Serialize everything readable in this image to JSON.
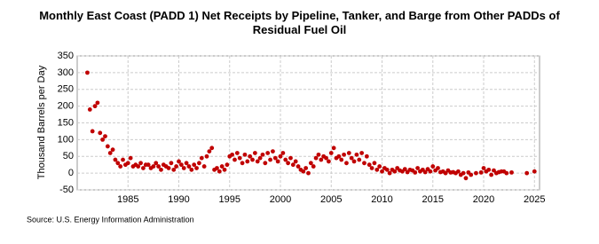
{
  "chart_data": {
    "type": "scatter",
    "title": "Monthly East Coast (PADD 1) Net Receipts by Pipeline, Tanker, and Barge from Other PADDs of Residual Fuel Oil",
    "y_label": "Thousand Barrels per Day",
    "source": "Source: U.S. Energy Information Administration",
    "color": "#c00000",
    "grid": true,
    "xlim": [
      1980,
      2025.5
    ],
    "xticks": [
      1985,
      1990,
      1995,
      2000,
      2005,
      2010,
      2015,
      2020,
      2025
    ],
    "ylim": [
      -50,
      350
    ],
    "yticks": [
      -50,
      0,
      50,
      100,
      150,
      200,
      250,
      300,
      350
    ],
    "x": [
      1981,
      1981.25,
      1981.5,
      1981.75,
      1982,
      1982.25,
      1982.5,
      1982.75,
      1983,
      1983.25,
      1983.5,
      1983.75,
      1984,
      1984.25,
      1984.5,
      1984.75,
      1985,
      1985.25,
      1985.5,
      1985.75,
      1986,
      1986.25,
      1986.5,
      1986.75,
      1987,
      1987.25,
      1987.5,
      1987.75,
      1988,
      1988.25,
      1988.5,
      1988.75,
      1989,
      1989.25,
      1989.5,
      1989.75,
      1990,
      1990.25,
      1990.5,
      1990.75,
      1991,
      1991.25,
      1991.5,
      1991.75,
      1992,
      1992.25,
      1992.5,
      1992.75,
      1993,
      1993.25,
      1993.5,
      1993.75,
      1994,
      1994.25,
      1994.5,
      1994.75,
      1995,
      1995.25,
      1995.5,
      1995.75,
      1996,
      1996.25,
      1996.5,
      1996.75,
      1997,
      1997.25,
      1997.5,
      1997.75,
      1998,
      1998.25,
      1998.5,
      1998.75,
      1999,
      1999.25,
      1999.5,
      1999.75,
      2000,
      2000.25,
      2000.5,
      2000.75,
      2001,
      2001.25,
      2001.5,
      2001.75,
      2002,
      2002.25,
      2002.5,
      2002.75,
      2003,
      2003.25,
      2003.5,
      2003.75,
      2004,
      2004.25,
      2004.5,
      2004.75,
      2005,
      2005.25,
      2005.5,
      2005.75,
      2006,
      2006.25,
      2006.5,
      2006.75,
      2007,
      2007.25,
      2007.5,
      2007.75,
      2008,
      2008.25,
      2008.5,
      2008.75,
      2009,
      2009.25,
      2009.5,
      2009.75,
      2010,
      2010.25,
      2010.5,
      2010.75,
      2011,
      2011.25,
      2011.5,
      2011.75,
      2012,
      2012.25,
      2012.5,
      2012.75,
      2013,
      2013.25,
      2013.5,
      2013.75,
      2014,
      2014.25,
      2014.5,
      2014.75,
      2015,
      2015.25,
      2015.5,
      2015.75,
      2016,
      2016.25,
      2016.5,
      2016.75,
      2017,
      2017.25,
      2017.5,
      2017.75,
      2018,
      2018.25,
      2018.5,
      2018.75,
      2019.25,
      2019.75,
      2020,
      2020.25,
      2020.5,
      2020.75,
      2021,
      2021.25,
      2021.5,
      2021.75,
      2022,
      2022.25,
      2022.75,
      2024.25,
      2025
    ],
    "values": [
      300,
      190,
      125,
      200,
      210,
      120,
      100,
      110,
      80,
      60,
      70,
      40,
      30,
      20,
      40,
      25,
      30,
      45,
      20,
      25,
      20,
      30,
      15,
      25,
      25,
      15,
      20,
      30,
      20,
      10,
      25,
      20,
      15,
      30,
      10,
      20,
      35,
      25,
      15,
      30,
      20,
      10,
      25,
      15,
      30,
      45,
      20,
      50,
      65,
      75,
      10,
      15,
      5,
      20,
      10,
      25,
      50,
      55,
      40,
      60,
      45,
      30,
      55,
      35,
      50,
      40,
      60,
      35,
      45,
      55,
      30,
      60,
      40,
      65,
      45,
      35,
      50,
      60,
      40,
      30,
      45,
      25,
      35,
      20,
      10,
      5,
      15,
      0,
      30,
      20,
      45,
      55,
      40,
      50,
      45,
      35,
      60,
      75,
      45,
      50,
      40,
      55,
      30,
      60,
      45,
      35,
      55,
      40,
      60,
      30,
      50,
      25,
      15,
      30,
      10,
      20,
      5,
      15,
      10,
      0,
      10,
      5,
      15,
      8,
      5,
      12,
      3,
      10,
      8,
      2,
      15,
      5,
      10,
      3,
      12,
      5,
      20,
      8,
      15,
      3,
      5,
      0,
      8,
      2,
      3,
      0,
      5,
      -5,
      0,
      -15,
      2,
      -5,
      0,
      2,
      15,
      5,
      10,
      -5,
      8,
      0,
      3,
      5,
      5,
      0,
      2,
      0,
      5
    ]
  }
}
